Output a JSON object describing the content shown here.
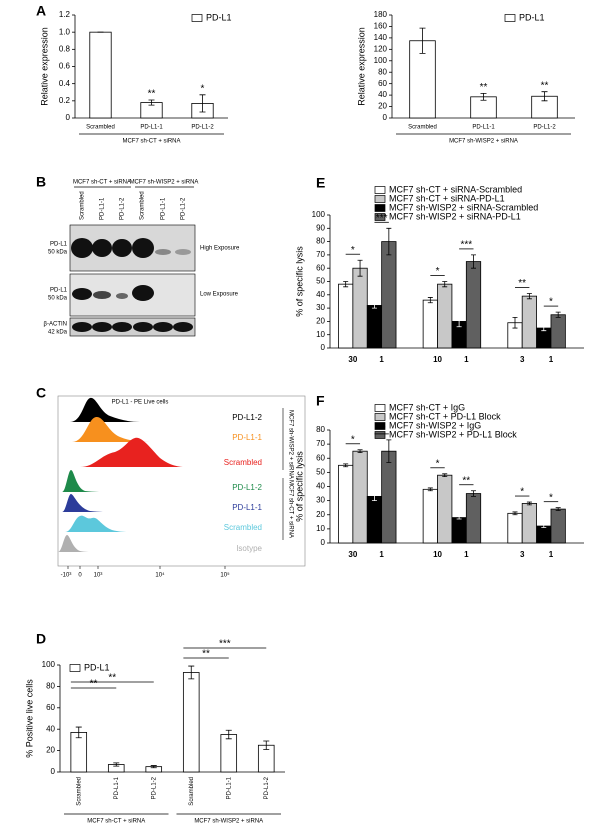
{
  "panel_labels": [
    "A",
    "B",
    "C",
    "D",
    "E",
    "F"
  ],
  "chart_data": [
    {
      "type": "bar",
      "ylabel": "Relative expression",
      "categories": [
        "Scrambled",
        "PD-L1-1",
        "PD-L1-2"
      ],
      "series": [
        {
          "name": "PD-L1",
          "color": "#ffffff",
          "values": [
            1.0,
            0.18,
            0.17
          ],
          "errors": [
            0,
            0.03,
            0.1
          ]
        }
      ],
      "annotations": [
        null,
        "**",
        "*"
      ],
      "group_labels": [
        "MCF7 sh-CT + siRNA"
      ],
      "ylim": [
        0,
        1.2
      ],
      "yticks": [
        0,
        0.2,
        0.4,
        0.6,
        0.8,
        {
          "value": 1,
          "label": "1.0"
        },
        1.2
      ]
    },
    {
      "type": "bar",
      "ylabel": "Relative expression",
      "categories": [
        "Scrambled",
        "PD-L1-1",
        "PD-L1-2"
      ],
      "series": [
        {
          "name": "PD-L1",
          "color": "#ffffff",
          "values": [
            135,
            37,
            38
          ],
          "errors": [
            22,
            6,
            8
          ]
        }
      ],
      "annotations": [
        null,
        "**",
        "**"
      ],
      "group_labels": [
        "MCF7 sh-WISP2 + siRNA"
      ],
      "ylim": [
        0,
        180
      ],
      "yticks": [
        0,
        20,
        40,
        60,
        80,
        100,
        120,
        140,
        160,
        180
      ]
    },
    {
      "type": "bar",
      "ylabel": "% Positive live cells",
      "categories": [
        "Scrambled",
        "PD-L1-1",
        "PD-L1-2",
        "Scrambled",
        "PD-L1-1",
        "PD-L1-2"
      ],
      "series": [
        {
          "name": "PD-L1",
          "color": "#ffffff",
          "values": [
            37,
            7,
            5,
            93,
            35,
            25
          ],
          "errors": [
            5,
            1.5,
            1,
            6,
            4,
            4
          ]
        }
      ],
      "brackets": [
        "**",
        "**",
        "**",
        "***"
      ],
      "group_labels": [
        "MCF7 sh-CT + siRNA",
        "MCF7 sh-WISP2 + siRNA"
      ],
      "ylim": [
        0,
        100
      ],
      "yticks": [
        0,
        20,
        40,
        60,
        80,
        100
      ]
    },
    {
      "type": "grouped_bar",
      "ylabel": "% of specific lysis",
      "x_labels": [
        [
          "30",
          "1"
        ],
        [
          "10",
          "1"
        ],
        [
          "3",
          "1"
        ]
      ],
      "series": [
        {
          "name": "MCF7 sh-CT + siRNA-Scrambled",
          "color": "#ffffff",
          "values": [
            48,
            36,
            19
          ],
          "errors": [
            2,
            2,
            4
          ]
        },
        {
          "name": "MCF7 sh-CT + siRNA-PD-L1",
          "color": "#c8c8c8",
          "values": [
            60,
            48,
            39
          ],
          "errors": [
            6,
            2,
            2
          ]
        },
        {
          "name": "MCF7 sh-WISP2 + siRNA-Scrambled",
          "color": "#000000",
          "values": [
            32,
            20,
            15
          ],
          "errors": [
            2,
            4,
            2
          ]
        },
        {
          "name": "MCF7 sh-WISP2 + siRNA-PD-L1",
          "color": "#606060",
          "values": [
            80,
            65,
            25
          ],
          "errors": [
            10,
            5,
            2
          ]
        }
      ],
      "brackets": [
        "*",
        "***",
        "*",
        "***",
        "**",
        "*"
      ],
      "ylim": [
        0,
        100
      ],
      "yticks": [
        0,
        10,
        20,
        30,
        40,
        50,
        60,
        70,
        80,
        90,
        100
      ]
    },
    {
      "type": "grouped_bar",
      "ylabel": "% of specific lysis",
      "x_labels": [
        [
          "30",
          "1"
        ],
        [
          "10",
          "1"
        ],
        [
          "3",
          "1"
        ]
      ],
      "series": [
        {
          "name": "MCF7 sh-CT + IgG",
          "color": "#ffffff",
          "values": [
            55,
            38,
            21
          ],
          "errors": [
            1,
            1,
            1
          ]
        },
        {
          "name": "MCF7 sh-CT + PD-L1 Block",
          "color": "#c8c8c8",
          "values": [
            65,
            48,
            28
          ],
          "errors": [
            1,
            1,
            1
          ]
        },
        {
          "name": "MCF7 sh-WISP2 + IgG",
          "color": "#000000",
          "values": [
            33,
            18,
            12
          ],
          "errors": [
            3,
            1,
            1
          ]
        },
        {
          "name": "MCF7 sh-WISP2 + PD-L1 Block",
          "color": "#606060",
          "values": [
            65,
            35,
            24
          ],
          "errors": [
            8,
            2,
            1
          ]
        }
      ],
      "brackets": [
        "*",
        "**",
        "*",
        "**",
        "*",
        "*"
      ],
      "ylim": [
        0,
        80
      ],
      "yticks": [
        0,
        10,
        20,
        30,
        40,
        50,
        60,
        70,
        80
      ]
    }
  ],
  "blot": {
    "groups": [
      "MCF7 sh-CT + siRNA",
      "MCF7 sh-WISP2 + siRNA"
    ],
    "lanes": [
      "Scrambled",
      "PD-L1-1",
      "PD-L1-2",
      "Scrambled",
      "PD-L1-1",
      "PD-L1-2"
    ],
    "rows": [
      {
        "protein": "PD-L1",
        "size": "50 kDa",
        "exposure": "High Exposure"
      },
      {
        "protein": "PD-L1",
        "size": "50 kDa",
        "exposure": "Low Exposure"
      },
      {
        "protein": "β-ACTIN",
        "size": "42 kDa"
      }
    ]
  },
  "flow": {
    "title": "PD-L1 - PE Live cells",
    "tracks": [
      "PD-L1-2",
      "PD-L1-1",
      "Scrambled",
      "PD-L1-2",
      "PD-L1-1",
      "Scrambled",
      "Isotype"
    ],
    "groups": [
      "MCF7 sh-WISP2 + siRNA",
      "MCF7 sh-CT + siRNA"
    ],
    "xticks": [
      "-10³",
      "0",
      "10³",
      "10⁴",
      "10⁵"
    ]
  }
}
